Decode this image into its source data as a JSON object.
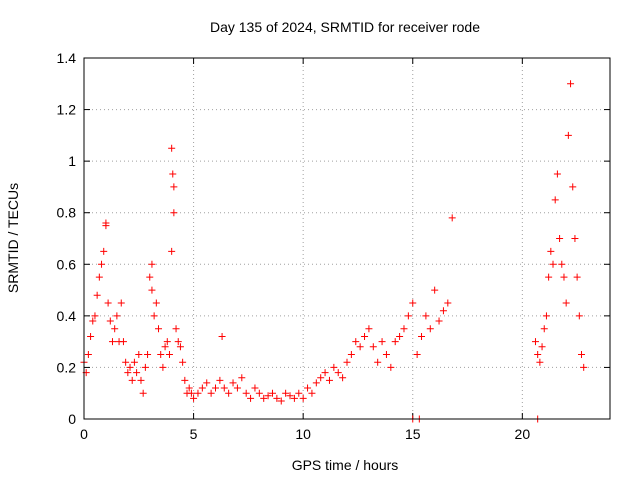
{
  "chart_data": {
    "type": "scatter",
    "title": "Day 135 of 2024, SRMTID for receiver rode",
    "xlabel": "GPS time / hours",
    "ylabel": "SRMTID / TECUs",
    "xlim": [
      0,
      24
    ],
    "ylim": [
      0,
      1.4
    ],
    "xticks": [
      0,
      5,
      10,
      15,
      20
    ],
    "yticks": [
      0,
      0.2,
      0.4,
      0.6,
      0.8,
      1,
      1.2,
      1.4
    ],
    "ytick_labels": [
      "0",
      "0.2",
      "0.4",
      "0.6",
      "0.8",
      "1",
      "1.2",
      "1.4"
    ],
    "grid": true,
    "marker": "plus",
    "series": [
      {
        "name": "SRMTID",
        "color": "#ff0000",
        "x": [
          0.0,
          0.1,
          0.2,
          0.3,
          0.4,
          0.5,
          0.6,
          0.7,
          0.8,
          0.9,
          1.0,
          1.1,
          1.2,
          1.3,
          1.4,
          1.5,
          1.6,
          1.7,
          1.8,
          1.9,
          2.0,
          2.1,
          2.2,
          2.3,
          2.4,
          2.5,
          2.6,
          2.7,
          2.8,
          2.9,
          3.0,
          3.1,
          3.2,
          3.3,
          3.4,
          3.5,
          3.6,
          3.7,
          3.8,
          3.9,
          4.0,
          4.1,
          4.2,
          4.3,
          4.4,
          4.5,
          4.6,
          4.7,
          4.8,
          4.9,
          5.0,
          5.2,
          5.4,
          5.6,
          5.8,
          6.0,
          6.2,
          6.4,
          6.6,
          6.8,
          7.0,
          7.2,
          7.4,
          7.6,
          7.8,
          8.0,
          8.2,
          8.4,
          8.6,
          8.8,
          9.0,
          9.2,
          9.4,
          9.6,
          9.8,
          10.0,
          10.2,
          10.4,
          10.6,
          10.8,
          11.0,
          11.2,
          11.4,
          11.6,
          11.8,
          12.0,
          12.2,
          12.4,
          12.6,
          12.8,
          13.0,
          13.2,
          13.4,
          13.6,
          13.8,
          14.0,
          14.2,
          14.4,
          14.6,
          14.8,
          15.0,
          15.2,
          15.4,
          15.6,
          15.8,
          16.0,
          16.2,
          16.4,
          16.6,
          16.8,
          20.6,
          20.7,
          20.8,
          20.9,
          21.0,
          21.1,
          21.2,
          21.3,
          21.4,
          21.5,
          21.6,
          21.7,
          21.8,
          21.9,
          22.0,
          22.1,
          22.2,
          22.3,
          22.4,
          22.5,
          22.6,
          22.7,
          22.8,
          1.0,
          3.1,
          4.0,
          4.05,
          4.1,
          6.3,
          15.0,
          15.3,
          20.7
        ],
        "y": [
          0.22,
          0.18,
          0.25,
          0.32,
          0.38,
          0.4,
          0.48,
          0.55,
          0.6,
          0.65,
          0.75,
          0.45,
          0.38,
          0.3,
          0.35,
          0.4,
          0.3,
          0.45,
          0.3,
          0.22,
          0.18,
          0.2,
          0.15,
          0.22,
          0.18,
          0.25,
          0.15,
          0.1,
          0.2,
          0.25,
          0.55,
          0.5,
          0.4,
          0.45,
          0.35,
          0.25,
          0.2,
          0.28,
          0.3,
          0.25,
          0.65,
          0.8,
          0.35,
          0.3,
          0.28,
          0.22,
          0.15,
          0.1,
          0.12,
          0.1,
          0.08,
          0.1,
          0.12,
          0.14,
          0.1,
          0.12,
          0.15,
          0.12,
          0.1,
          0.14,
          0.12,
          0.16,
          0.1,
          0.08,
          0.12,
          0.1,
          0.08,
          0.09,
          0.1,
          0.08,
          0.07,
          0.1,
          0.09,
          0.08,
          0.1,
          0.08,
          0.12,
          0.1,
          0.14,
          0.16,
          0.18,
          0.15,
          0.2,
          0.18,
          0.16,
          0.22,
          0.25,
          0.3,
          0.28,
          0.32,
          0.35,
          0.28,
          0.22,
          0.3,
          0.25,
          0.2,
          0.3,
          0.32,
          0.35,
          0.4,
          0.45,
          0.25,
          0.32,
          0.4,
          0.35,
          0.5,
          0.38,
          0.42,
          0.45,
          0.78,
          0.3,
          0.25,
          0.22,
          0.28,
          0.35,
          0.4,
          0.55,
          0.65,
          0.6,
          0.85,
          0.95,
          0.7,
          0.6,
          0.55,
          0.45,
          1.1,
          1.3,
          0.9,
          0.7,
          0.55,
          0.4,
          0.25,
          0.2,
          0.76,
          0.6,
          1.05,
          0.95,
          0.9,
          0.32,
          0.0,
          0.0,
          0.0
        ]
      }
    ]
  }
}
